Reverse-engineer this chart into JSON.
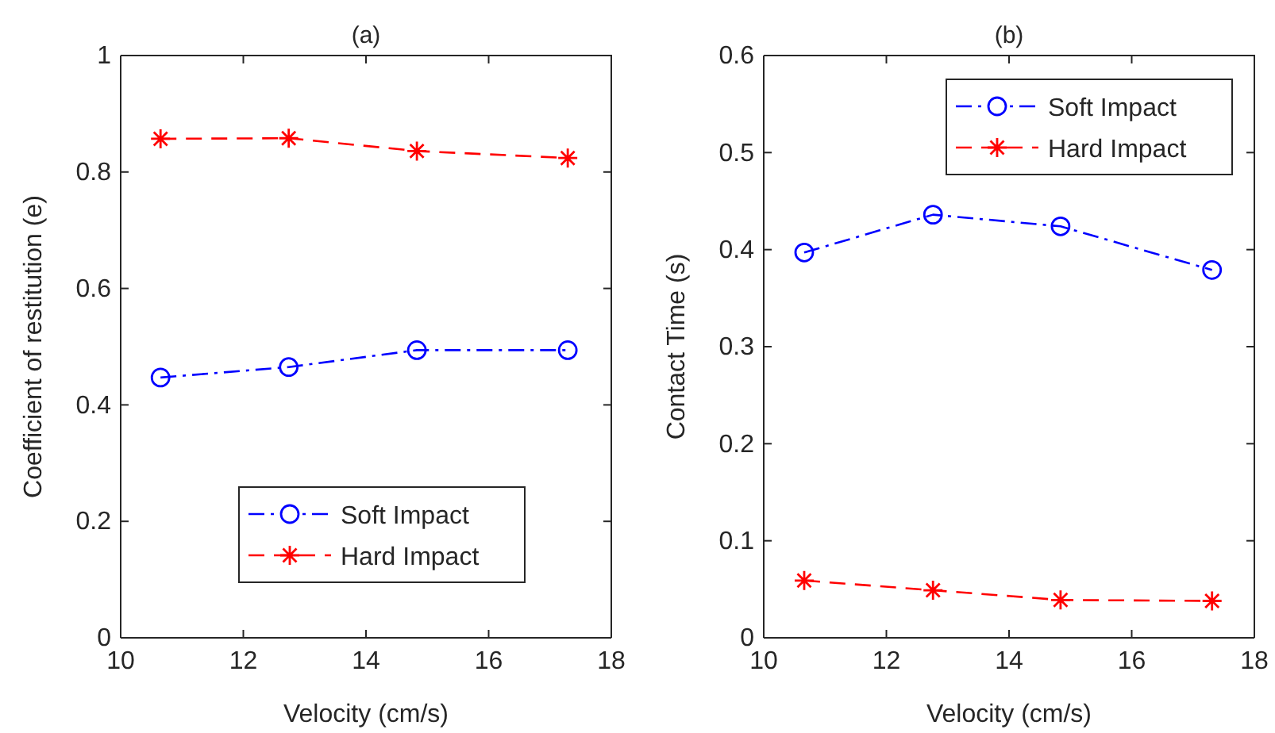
{
  "chart_data": [
    {
      "type": "line",
      "title": "(a)",
      "xlabel": "Velocity (cm/s)",
      "ylabel": "Coefficient of restitution (e)",
      "x": [
        10.65,
        12.74,
        14.83,
        17.29
      ],
      "series": [
        {
          "name": "Soft Impact",
          "color": "#0000ff",
          "values": [
            0.447,
            0.465,
            0.494,
            0.494
          ],
          "marker": "circle",
          "line_style": "dashdot"
        },
        {
          "name": "Hard Impact",
          "color": "#ff0000",
          "values": [
            0.857,
            0.858,
            0.836,
            0.824
          ],
          "marker": "cross",
          "line_style": "dashed"
        }
      ],
      "xlim": [
        10,
        18
      ],
      "xticks": [
        10,
        12,
        14,
        16,
        18
      ],
      "ylim": [
        0,
        1
      ],
      "yticks": [
        0,
        0.2,
        0.4,
        0.6,
        0.8,
        1
      ],
      "grid": false,
      "legend": "bottom"
    },
    {
      "type": "line",
      "title": "(b)",
      "xlabel": "Velocity (cm/s)",
      "ylabel": "Contact Time (s)",
      "x": [
        10.66,
        12.76,
        14.84,
        17.31
      ],
      "series": [
        {
          "name": "Soft Impact",
          "color": "#0000ff",
          "values": [
            0.397,
            0.436,
            0.424,
            0.379
          ],
          "marker": "circle",
          "line_style": "dashdot"
        },
        {
          "name": "Hard Impact",
          "color": "#ff0000",
          "values": [
            0.059,
            0.049,
            0.039,
            0.038
          ],
          "marker": "cross",
          "line_style": "dashed"
        }
      ],
      "xlim": [
        10,
        18
      ],
      "xticks": [
        10,
        12,
        14,
        16,
        18
      ],
      "ylim": [
        0,
        0.6
      ],
      "yticks": [
        0,
        0.1,
        0.2,
        0.3,
        0.4,
        0.5,
        0.6
      ],
      "grid": false,
      "legend": "top right"
    }
  ]
}
